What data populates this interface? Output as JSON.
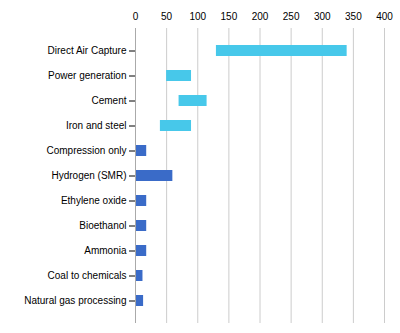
{
  "chart_data": {
    "type": "bar",
    "orientation": "horizontal",
    "categories": [
      "Direct Air Capture",
      "Power generation",
      "Cement",
      "Iron and steel",
      "Compression only",
      "Hydrogen (SMR)",
      "Ethylene oxide",
      "Bioethanol",
      "Ammonia",
      "Coal to chemicals",
      "Natural gas processing"
    ],
    "starts": [
      130,
      50,
      70,
      40,
      0,
      0,
      0,
      0,
      0,
      0,
      0
    ],
    "ends": [
      340,
      90,
      115,
      90,
      18,
      60,
      18,
      18,
      18,
      12,
      13
    ],
    "colors": [
      "#47C8EA",
      "#47C8EA",
      "#47C8EA",
      "#47C8EA",
      "#3A6BC8",
      "#3A6BC8",
      "#3A6BC8",
      "#3A6BC8",
      "#3A6BC8",
      "#3A6BC8",
      "#3A6BC8"
    ],
    "xlim": [
      0,
      400
    ],
    "xticks": [
      0,
      50,
      100,
      150,
      200,
      250,
      300,
      350,
      400
    ],
    "grid": true
  }
}
